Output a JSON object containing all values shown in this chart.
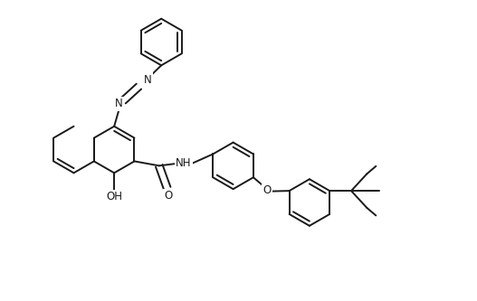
{
  "bg_color": "#ffffff",
  "line_color": "#1a1a1a",
  "line_width": 1.4,
  "font_size": 8.5,
  "fig_width": 5.27,
  "fig_height": 3.33,
  "dpi": 100,
  "xlim": [
    0,
    10.54
  ],
  "ylim": [
    0,
    6.66
  ]
}
